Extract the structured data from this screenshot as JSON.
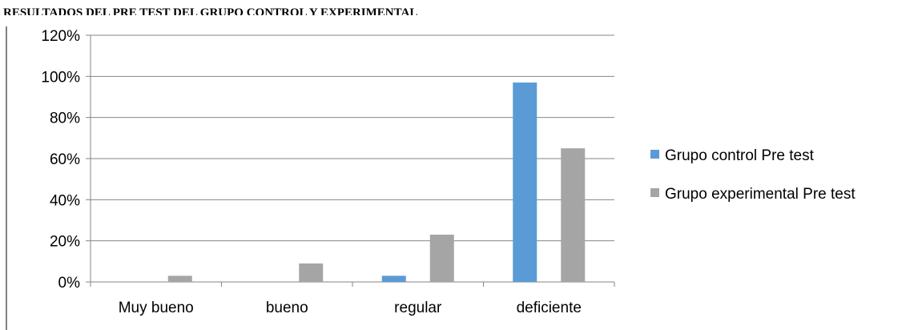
{
  "chart_data": {
    "type": "bar",
    "title": "RESULTADOS DEL PRE TEST DEL GRUPO CONTROL Y EXPERIMENTAL",
    "categories": [
      "Muy bueno",
      "bueno",
      "regular",
      "deficiente"
    ],
    "series": [
      {
        "name": "Grupo control Pre test",
        "values": [
          0,
          0,
          3,
          97
        ],
        "color": "#5B9BD5"
      },
      {
        "name": "Grupo experimental Pre test",
        "values": [
          3,
          9,
          23,
          65
        ],
        "color": "#A5A5A5"
      }
    ],
    "ylim": [
      0,
      120
    ],
    "yticks": [
      "0%",
      "20%",
      "40%",
      "60%",
      "80%",
      "100%",
      "120%"
    ],
    "grid": true,
    "legend_position": "right"
  }
}
